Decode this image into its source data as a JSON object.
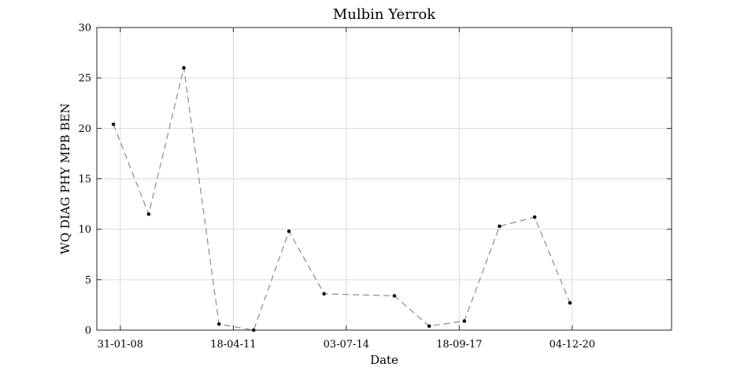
{
  "chart_data": {
    "type": "line",
    "title": "Mulbin Yerrok",
    "xlabel": "Date",
    "ylabel": "WQ DIAG PHY MPB BEN",
    "ylim": [
      0,
      30
    ],
    "xlim": [
      "2007-06-01",
      "2023-10-01"
    ],
    "grid": true,
    "yticks": [
      0,
      5,
      10,
      15,
      20,
      25,
      30
    ],
    "xticks": [
      {
        "date": "2008-01-31",
        "label": "31-01-08"
      },
      {
        "date": "2011-04-18",
        "label": "18-04-11"
      },
      {
        "date": "2014-07-03",
        "label": "03-07-14"
      },
      {
        "date": "2017-09-18",
        "label": "18-09-17"
      },
      {
        "date": "2020-12-04",
        "label": "04-12-20"
      }
    ],
    "series": [
      {
        "color": "#8c8c8c",
        "marker_color": "#111111",
        "points": [
          {
            "x": "2007-11-20",
            "y": 20.4
          },
          {
            "x": "2008-11-20",
            "y": 11.5
          },
          {
            "x": "2009-11-20",
            "y": 26.0
          },
          {
            "x": "2010-11-20",
            "y": 0.6
          },
          {
            "x": "2011-11-15",
            "y": 0.0
          },
          {
            "x": "2012-11-15",
            "y": 9.8
          },
          {
            "x": "2013-11-15",
            "y": 3.6
          },
          {
            "x": "2015-11-15",
            "y": 3.4
          },
          {
            "x": "2016-11-10",
            "y": 0.4
          },
          {
            "x": "2017-11-10",
            "y": 0.9
          },
          {
            "x": "2018-11-10",
            "y": 10.3
          },
          {
            "x": "2019-11-10",
            "y": 11.2
          },
          {
            "x": "2020-11-10",
            "y": 2.7
          }
        ]
      }
    ]
  }
}
